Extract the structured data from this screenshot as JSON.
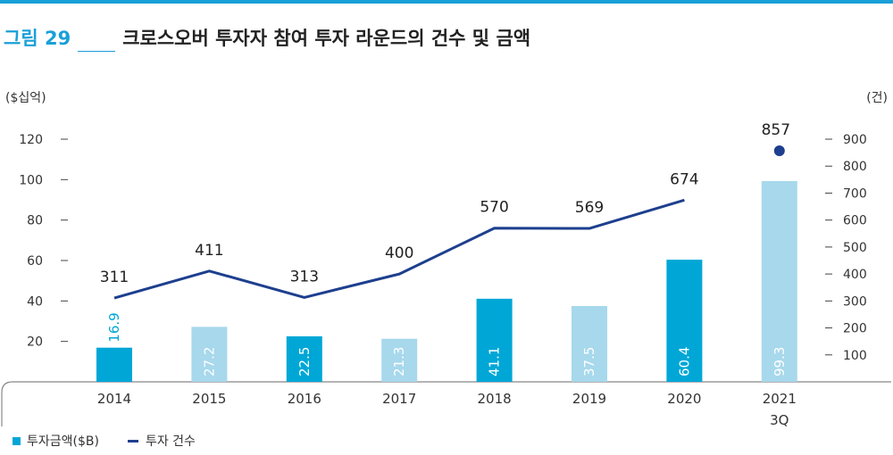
{
  "figure": {
    "label": "그림 29",
    "title": "크로스오버 투자자 참여 투자 라운드의 건수 및 금액"
  },
  "chart_data": {
    "type": "bar",
    "categories": [
      "2014",
      "2015",
      "2016",
      "2017",
      "2018",
      "2019",
      "2020",
      "2021"
    ],
    "category_sublabels": [
      "",
      "",
      "",
      "",
      "",
      "",
      "",
      "3Q"
    ],
    "left_unit": "($십억)",
    "right_unit": "(건)",
    "left_ticks": [
      "20",
      "40",
      "60",
      "80",
      "100",
      "120"
    ],
    "right_ticks": [
      "100",
      "200",
      "300",
      "400",
      "500",
      "600",
      "700",
      "800",
      "900"
    ],
    "ylim_left": [
      0,
      120
    ],
    "ylim_right": [
      0,
      900
    ],
    "series": [
      {
        "name": "투자금액($B)",
        "kind": "bar",
        "axis": "left",
        "values": [
          16.9,
          27.2,
          22.5,
          21.3,
          41.1,
          37.5,
          60.4,
          99.3
        ],
        "labels": [
          "16.9",
          "27.2",
          "22.5",
          "21.3",
          "41.1",
          "37.5",
          "60.4",
          "99.3"
        ],
        "colors": [
          "#00a7d6",
          "#a7d8ec",
          "#00a7d6",
          "#a7d8ec",
          "#00a7d6",
          "#a7d8ec",
          "#00a7d6",
          "#a7d8ec"
        ]
      },
      {
        "name": "투자 건수",
        "kind": "line",
        "axis": "right",
        "values": [
          311,
          411,
          313,
          400,
          570,
          569,
          674,
          857
        ],
        "labels": [
          "311",
          "411",
          "313",
          "400",
          "570",
          "569",
          "674",
          "857"
        ],
        "color": "#1d3f8e"
      }
    ],
    "legend_position": "bottom-left",
    "grid": false
  }
}
